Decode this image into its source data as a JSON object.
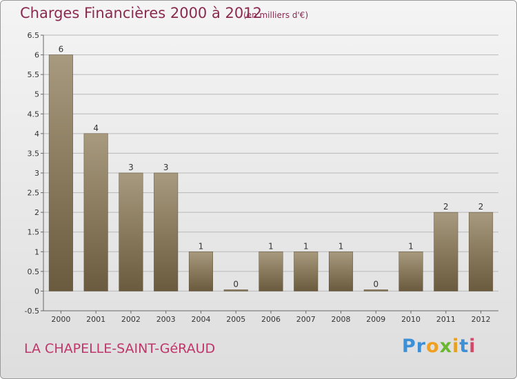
{
  "title": "Charges Financières 2000 à 2012",
  "subtitle": "(en milliers d'€)",
  "commune": "LA CHAPELLE-SAINT-GéRAUD",
  "logo": {
    "text": "Proxiti",
    "letters": [
      {
        "ch": "P",
        "color": "#3d8fd6"
      },
      {
        "ch": "r",
        "color": "#3d8fd6"
      },
      {
        "ch": "o",
        "color": "#f0a020"
      },
      {
        "ch": "x",
        "color": "#6ab82f"
      },
      {
        "ch": "i",
        "color": "#e8a020"
      },
      {
        "ch": "t",
        "color": "#3d8fd6"
      },
      {
        "ch": "i",
        "color": "#d04a6a"
      }
    ]
  },
  "chart_data": {
    "type": "bar",
    "title": "Charges Financières 2000 à 2012",
    "subtitle": "(en milliers d'€)",
    "categories": [
      "2000",
      "2001",
      "2002",
      "2003",
      "2004",
      "2005",
      "2006",
      "2007",
      "2008",
      "2009",
      "2010",
      "2011",
      "2012"
    ],
    "values": [
      6,
      4,
      3,
      3,
      1,
      0,
      1,
      1,
      1,
      0,
      1,
      2,
      2
    ],
    "data_labels": [
      "6",
      "4",
      "3",
      "3",
      "1",
      "0",
      "1",
      "1",
      "1",
      "0",
      "1",
      "2",
      "2"
    ],
    "ylim": [
      -0.5,
      6.5
    ],
    "yticks": [
      -0.5,
      0,
      0.5,
      1,
      1.5,
      2,
      2.5,
      3,
      3.5,
      4,
      4.5,
      5,
      5.5,
      6,
      6.5
    ],
    "ytick_labels": [
      "-0.5",
      "0",
      "0.5",
      "1",
      "1.5",
      "2",
      "2.5",
      "3",
      "3.5",
      "4",
      "4.5",
      "5",
      "5.5",
      "6",
      "6.5"
    ],
    "grid": true,
    "colors": {
      "bar_light": "#a89a7e",
      "bar_dark": "#6a5a3e",
      "grid": "#b8b8b8",
      "axis": "#666666"
    }
  }
}
